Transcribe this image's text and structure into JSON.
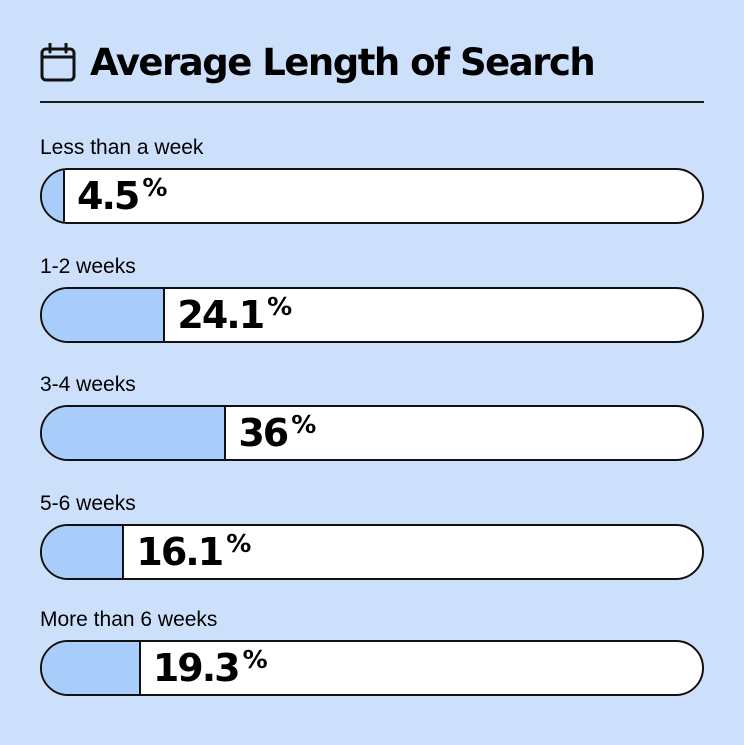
{
  "title": "Average Length of Search",
  "icons": {
    "title_icon": "calendar-icon"
  },
  "colors": {
    "background": "#cde0fb",
    "fill": "#a9cdfa",
    "bar_bg": "#ffffff",
    "outline": "#111111"
  },
  "rows": [
    {
      "label": "Less than a week",
      "value_text": "4.5",
      "pct_text": "%"
    },
    {
      "label": "1-2 weeks",
      "value_text": "24.1",
      "pct_text": "%"
    },
    {
      "label": "3-4 weeks",
      "value_text": "36",
      "pct_text": "%"
    },
    {
      "label": "5-6 weeks",
      "value_text": "16.1",
      "pct_text": "%"
    },
    {
      "label": "More than 6 weeks",
      "value_text": "19.3",
      "pct_text": "%"
    }
  ],
  "chart_data": {
    "type": "bar",
    "title": "Average Length of Search",
    "categories": [
      "Less than a week",
      "1-2 weeks",
      "3-4 weeks",
      "5-6 weeks",
      "More than 6 weeks"
    ],
    "values": [
      4.5,
      24.1,
      36,
      16.1,
      19.3
    ],
    "unit": "%",
    "orientation": "horizontal",
    "xlim": [
      0,
      100
    ],
    "grid": false
  }
}
